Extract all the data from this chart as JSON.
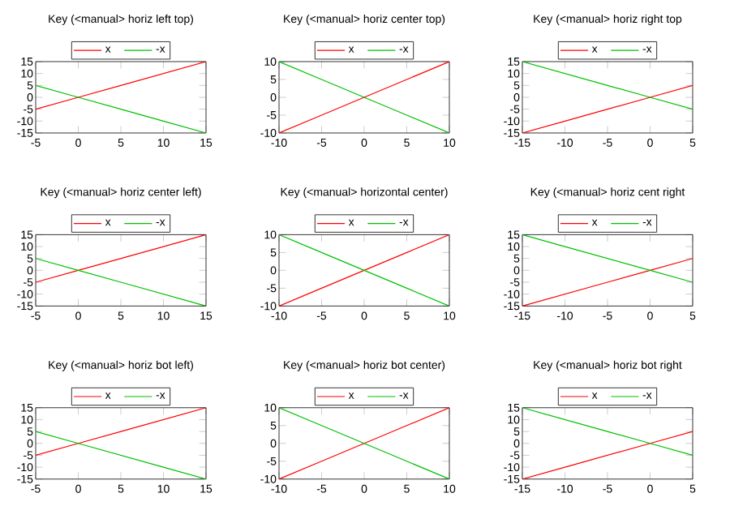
{
  "chart_data": [
    {
      "type": "line",
      "title": "Key (<manual> horiz left top)",
      "x": [
        -5,
        0,
        5,
        10,
        15
      ],
      "xlim": [
        -5,
        15
      ],
      "ylim": [
        -15,
        15
      ],
      "xticks": [
        -5,
        0,
        5,
        10,
        15
      ],
      "yticks": [
        -15,
        -10,
        -5,
        0,
        5,
        10,
        15
      ],
      "legend": "top",
      "series": [
        {
          "name": "x",
          "color": "#ff0000",
          "values": [
            -5,
            0,
            5,
            10,
            15
          ]
        },
        {
          "name": "-x",
          "color": "#00c000",
          "values": [
            5,
            0,
            -5,
            -10,
            -15
          ]
        }
      ]
    },
    {
      "type": "line",
      "title": "Key (<manual> horiz center top)",
      "x": [
        -10,
        -5,
        0,
        5,
        10
      ],
      "xlim": [
        -10,
        10
      ],
      "ylim": [
        -10,
        10
      ],
      "xticks": [
        -10,
        -5,
        0,
        5,
        10
      ],
      "yticks": [
        -10,
        -5,
        0,
        5,
        10
      ],
      "legend": "top",
      "series": [
        {
          "name": "x",
          "color": "#ff0000",
          "values": [
            -10,
            -5,
            0,
            5,
            10
          ]
        },
        {
          "name": "-x",
          "color": "#00c000",
          "values": [
            10,
            5,
            0,
            -5,
            -10
          ]
        }
      ]
    },
    {
      "type": "line",
      "title": "Key (<manual> horiz right top",
      "x": [
        -15,
        -10,
        -5,
        0,
        5
      ],
      "xlim": [
        -15,
        5
      ],
      "ylim": [
        -15,
        15
      ],
      "xticks": [
        -15,
        -10,
        -5,
        0,
        5
      ],
      "yticks": [
        -15,
        -10,
        -5,
        0,
        5,
        10,
        15
      ],
      "legend": "top",
      "series": [
        {
          "name": "x",
          "color": "#ff0000",
          "values": [
            -15,
            -10,
            -5,
            0,
            5
          ]
        },
        {
          "name": "-x",
          "color": "#00c000",
          "values": [
            15,
            10,
            5,
            0,
            -5
          ]
        }
      ]
    },
    {
      "type": "line",
      "title": "Key (<manual> horiz center left)",
      "x": [
        -5,
        0,
        5,
        10,
        15
      ],
      "xlim": [
        -5,
        15
      ],
      "ylim": [
        -15,
        15
      ],
      "xticks": [
        -5,
        0,
        5,
        10,
        15
      ],
      "yticks": [
        -15,
        -10,
        -5,
        0,
        5,
        10,
        15
      ],
      "legend": "top",
      "series": [
        {
          "name": "x",
          "color": "#ff0000",
          "values": [
            -5,
            0,
            5,
            10,
            15
          ]
        },
        {
          "name": "-x",
          "color": "#00c000",
          "values": [
            5,
            0,
            -5,
            -10,
            -15
          ]
        }
      ]
    },
    {
      "type": "line",
      "title": "Key (<manual> horizontal center)",
      "x": [
        -10,
        -5,
        0,
        5,
        10
      ],
      "xlim": [
        -10,
        10
      ],
      "ylim": [
        -10,
        10
      ],
      "xticks": [
        -10,
        -5,
        0,
        5,
        10
      ],
      "yticks": [
        -10,
        -5,
        0,
        5,
        10
      ],
      "legend": "top",
      "series": [
        {
          "name": "x",
          "color": "#ff0000",
          "values": [
            -10,
            -5,
            0,
            5,
            10
          ]
        },
        {
          "name": "-x",
          "color": "#00c000",
          "values": [
            10,
            5,
            0,
            -5,
            -10
          ]
        }
      ]
    },
    {
      "type": "line",
      "title": "Key (<manual> horiz cent right",
      "x": [
        -15,
        -10,
        -5,
        0,
        5
      ],
      "xlim": [
        -15,
        5
      ],
      "ylim": [
        -15,
        15
      ],
      "xticks": [
        -15,
        -10,
        -5,
        0,
        5
      ],
      "yticks": [
        -15,
        -10,
        -5,
        0,
        5,
        10,
        15
      ],
      "legend": "top",
      "series": [
        {
          "name": "x",
          "color": "#ff0000",
          "values": [
            -15,
            -10,
            -5,
            0,
            5
          ]
        },
        {
          "name": "-x",
          "color": "#00c000",
          "values": [
            15,
            10,
            5,
            0,
            -5
          ]
        }
      ]
    },
    {
      "type": "line",
      "title": "Key (<manual> horiz bot left)",
      "x": [
        -5,
        0,
        5,
        10,
        15
      ],
      "xlim": [
        -5,
        15
      ],
      "ylim": [
        -15,
        15
      ],
      "xticks": [
        -5,
        0,
        5,
        10,
        15
      ],
      "yticks": [
        -15,
        -10,
        -5,
        0,
        5,
        10,
        15
      ],
      "legend": "top",
      "series": [
        {
          "name": "x",
          "color": "#ff0000",
          "values": [
            -5,
            0,
            5,
            10,
            15
          ]
        },
        {
          "name": "-x",
          "color": "#00c000",
          "values": [
            5,
            0,
            -5,
            -10,
            -15
          ]
        }
      ]
    },
    {
      "type": "line",
      "title": "Key (<manual> horiz bot center)",
      "x": [
        -10,
        -5,
        0,
        5,
        10
      ],
      "xlim": [
        -10,
        10
      ],
      "ylim": [
        -10,
        10
      ],
      "xticks": [
        -10,
        -5,
        0,
        5,
        10
      ],
      "yticks": [
        -10,
        -5,
        0,
        5,
        10
      ],
      "legend": "top",
      "series": [
        {
          "name": "x",
          "color": "#ff0000",
          "values": [
            -10,
            -5,
            0,
            5,
            10
          ]
        },
        {
          "name": "-x",
          "color": "#00c000",
          "values": [
            10,
            5,
            0,
            -5,
            -10
          ]
        }
      ]
    },
    {
      "type": "line",
      "title": "Key (<manual> horiz bot right",
      "x": [
        -15,
        -10,
        -5,
        0,
        5
      ],
      "xlim": [
        -15,
        5
      ],
      "ylim": [
        -15,
        15
      ],
      "xticks": [
        -15,
        -10,
        -5,
        0,
        5
      ],
      "yticks": [
        -15,
        -10,
        -5,
        0,
        5,
        10,
        15
      ],
      "legend": "top",
      "series": [
        {
          "name": "x",
          "color": "#ff0000",
          "values": [
            -15,
            -10,
            -5,
            0,
            5
          ]
        },
        {
          "name": "-x",
          "color": "#00c000",
          "values": [
            15,
            10,
            5,
            0,
            -5
          ]
        }
      ]
    }
  ]
}
